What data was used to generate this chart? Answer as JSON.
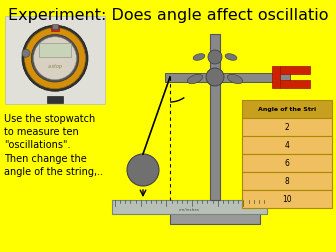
{
  "title": "Experiment: Does angle affect oscillatio",
  "title_fontsize": 11.5,
  "bg_color": "#FFFF00",
  "text_block": "Use the stopwatch\nto measure ten\n\"oscillations\".\nThen change the\nangle of the string,..",
  "text_fontsize": 7.0,
  "table_header": "Angle of the Stri",
  "table_values": [
    "2",
    "4",
    "6",
    "8",
    "10"
  ],
  "table_header_color": "#c8a020",
  "table_row_color": "#f0c060",
  "table_border_color": "#aa8800",
  "stand_color": "#888888",
  "stand_dark": "#555555",
  "bob_color": "#707070",
  "magnet_color": "#cc2200",
  "base_color": "#999999",
  "ruler_color": "#aaaaaa"
}
